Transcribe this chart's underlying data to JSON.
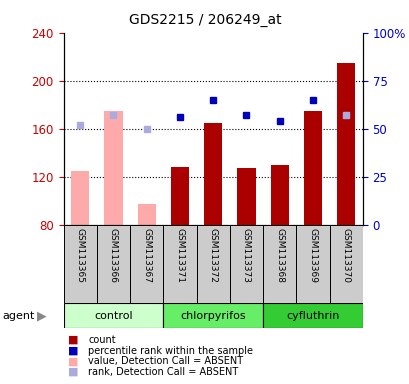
{
  "title": "GDS2215 / 206249_at",
  "samples": [
    "GSM113365",
    "GSM113366",
    "GSM113367",
    "GSM113371",
    "GSM113372",
    "GSM113373",
    "GSM113368",
    "GSM113369",
    "GSM113370"
  ],
  "groups": [
    {
      "name": "control",
      "indices": [
        0,
        1,
        2
      ],
      "color": "#ccffcc"
    },
    {
      "name": "chlorpyrifos",
      "indices": [
        3,
        4,
        5
      ],
      "color": "#66ee66"
    },
    {
      "name": "cyfluthrin",
      "indices": [
        6,
        7,
        8
      ],
      "color": "#33cc33"
    }
  ],
  "count_values": [
    null,
    null,
    null,
    128,
    165,
    127,
    130,
    175,
    215
  ],
  "count_color": "#aa0000",
  "rank_values_pct": [
    null,
    null,
    null,
    56,
    65,
    57,
    54,
    65,
    null
  ],
  "rank_color": "#0000bb",
  "absent_value_values": [
    125,
    175,
    97,
    null,
    null,
    null,
    null,
    null,
    215
  ],
  "absent_value_color": "#ffaaaa",
  "absent_rank_values_pct": [
    52,
    57,
    50,
    null,
    null,
    null,
    null,
    null,
    57
  ],
  "absent_rank_color": "#aaaadd",
  "ylim_left": [
    80,
    240
  ],
  "yticks_left": [
    80,
    120,
    160,
    200,
    240
  ],
  "ylim_right": [
    0,
    100
  ],
  "yticks_right": [
    0,
    25,
    50,
    75,
    100
  ],
  "yright_labels": [
    "0",
    "25",
    "50",
    "75",
    "100%"
  ],
  "ylabel_left_color": "#cc0000",
  "ylabel_right_color": "#0000cc",
  "bar_width": 0.55,
  "agent_label": "agent",
  "legend": [
    {
      "color": "#aa0000",
      "label": "count",
      "marker": "s"
    },
    {
      "color": "#0000bb",
      "label": "percentile rank within the sample",
      "marker": "s"
    },
    {
      "color": "#ffaaaa",
      "label": "value, Detection Call = ABSENT",
      "marker": "s"
    },
    {
      "color": "#aaaadd",
      "label": "rank, Detection Call = ABSENT",
      "marker": "s"
    }
  ]
}
